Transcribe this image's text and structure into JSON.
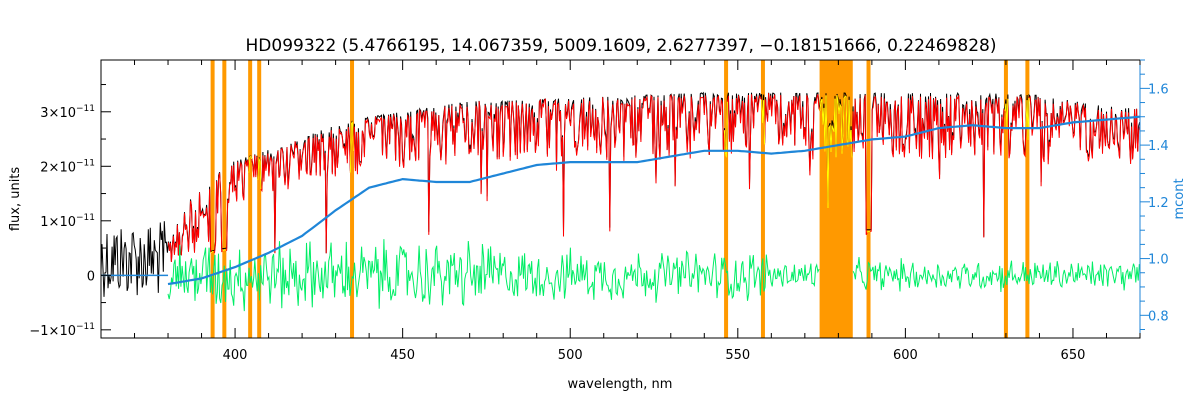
{
  "chart_data": {
    "type": "line",
    "title": "HD099322    (5.4766195, 14.067359, 5009.1609, 2.6277397, −0.18151666, 0.22469828)",
    "xlabel": "wavelength, nm",
    "ylabel": "flux, units",
    "y2label": "mcont",
    "xlim": [
      360,
      670
    ],
    "ylim": [
      -1.15e-11,
      3.95e-11
    ],
    "y2lim": [
      0.72,
      1.7
    ],
    "x_ticks": [
      400,
      450,
      500,
      550,
      600,
      650
    ],
    "x_tick_labels": [
      "400",
      "450",
      "500",
      "550",
      "600",
      "650"
    ],
    "y_ticks": [
      -1e-11,
      0,
      1e-11,
      2e-11,
      3e-11
    ],
    "y_tick_labels": [
      {
        "mant": "−1×10",
        "exp": "−11"
      },
      {
        "mant": "0",
        "exp": ""
      },
      {
        "mant": "1×10",
        "exp": "−11"
      },
      {
        "mant": "2×10",
        "exp": "−11"
      },
      {
        "mant": "3×10",
        "exp": "−11"
      }
    ],
    "y2_ticks": [
      0.8,
      1.0,
      1.2,
      1.4,
      1.6
    ],
    "y2_tick_labels": [
      "0.8",
      "1.0",
      "1.2",
      "1.4",
      "1.6"
    ],
    "grid": false,
    "colors": {
      "observed": "#000000",
      "model": "#ff0000",
      "residual": "#00ee66",
      "continuum": "#1f86d8",
      "mask": "#ff9900",
      "masked_flux": "#ffff00"
    },
    "masked_lines_nm": [
      393.3,
      396.8,
      404.5,
      407.2,
      434.9,
      546.5,
      557.5,
      589.0,
      630.0,
      636.4
    ],
    "masked_band_nm": [
      574.4,
      584.3
    ],
    "observed_envelope": {
      "x": [
        360,
        380,
        385,
        390,
        395,
        400,
        410,
        420,
        430,
        440,
        450,
        460,
        470,
        480,
        500,
        520,
        540,
        560,
        580,
        600,
        620,
        640,
        660,
        670
      ],
      "y": [
        1e-11,
        1e-11,
        1.3e-11,
        1.6e-11,
        1.9e-11,
        2.1e-11,
        2.3e-11,
        2.5e-11,
        2.8e-11,
        2.9e-11,
        3e-11,
        3.1e-11,
        3.2e-11,
        3.2e-11,
        3.25e-11,
        3.3e-11,
        3.35e-11,
        3.35e-11,
        3.35e-11,
        3.35e-11,
        3.35e-11,
        3.3e-11,
        3.1e-11,
        3.05e-11
      ]
    },
    "continuum": {
      "x": [
        380,
        385,
        390,
        400,
        410,
        420,
        430,
        440,
        450,
        460,
        470,
        480,
        490,
        500,
        510,
        520,
        530,
        540,
        550,
        560,
        570,
        580,
        590,
        600,
        610,
        620,
        630,
        640,
        650,
        660,
        670
      ],
      "y": [
        0.91,
        0.92,
        0.93,
        0.97,
        1.02,
        1.08,
        1.17,
        1.25,
        1.28,
        1.27,
        1.27,
        1.3,
        1.33,
        1.34,
        1.34,
        1.34,
        1.36,
        1.38,
        1.38,
        1.37,
        1.38,
        1.4,
        1.42,
        1.43,
        1.46,
        1.47,
        1.46,
        1.46,
        1.48,
        1.49,
        1.5
      ]
    },
    "residual_level": 0,
    "series": [
      {
        "name": ""
      },
      {
        "name": ""
      },
      {
        "name": ""
      },
      {
        "name": ""
      }
    ]
  }
}
